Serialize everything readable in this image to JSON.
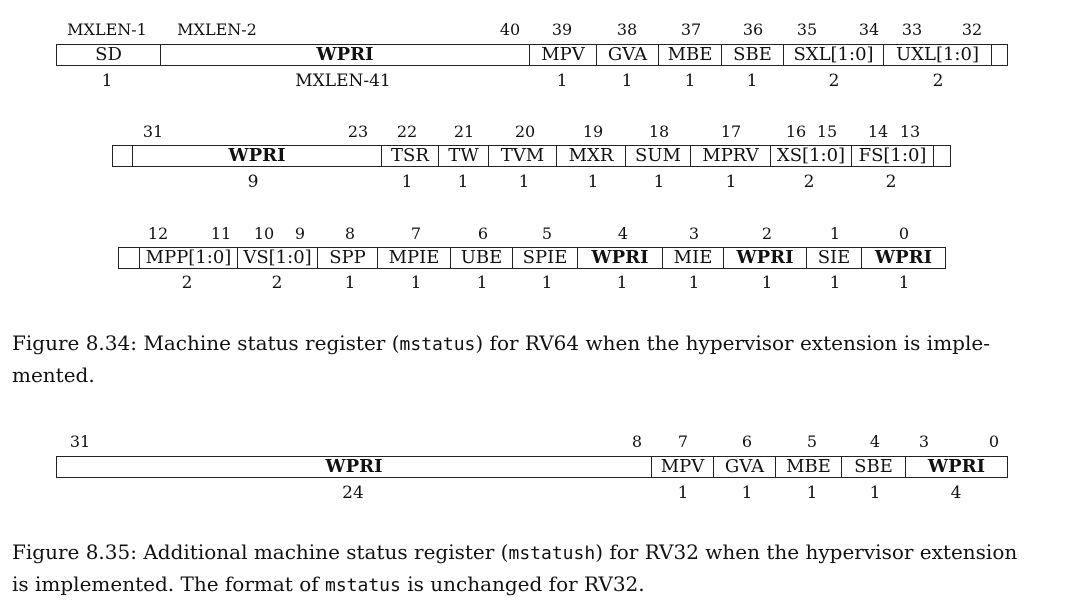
{
  "fig1": {
    "row1": {
      "bits": [
        "MXLEN-1",
        "MXLEN-2",
        "40",
        "39",
        "38",
        "37",
        "36",
        "35",
        "34",
        "33",
        "32"
      ],
      "fields": [
        "SD",
        "WPRI",
        "MPV",
        "GVA",
        "MBE",
        "SBE",
        "SXL[1:0]",
        "UXL[1:0]"
      ],
      "widths": [
        "1",
        "MXLEN-41",
        "1",
        "1",
        "1",
        "1",
        "2",
        "2"
      ]
    },
    "row2": {
      "bits": [
        "31",
        "23",
        "22",
        "21",
        "20",
        "19",
        "18",
        "17",
        "16",
        "15",
        "14",
        "13"
      ],
      "fields": [
        "WPRI",
        "TSR",
        "TW",
        "TVM",
        "MXR",
        "SUM",
        "MPRV",
        "XS[1:0]",
        "FS[1:0]"
      ],
      "widths": [
        "9",
        "1",
        "1",
        "1",
        "1",
        "1",
        "1",
        "2",
        "2"
      ]
    },
    "row3": {
      "bits": [
        "12",
        "11",
        "10",
        "9",
        "8",
        "7",
        "6",
        "5",
        "4",
        "3",
        "2",
        "1",
        "0"
      ],
      "fields": [
        "MPP[1:0]",
        "VS[1:0]",
        "SPP",
        "MPIE",
        "UBE",
        "SPIE",
        "WPRI",
        "MIE",
        "WPRI",
        "SIE",
        "WPRI"
      ],
      "widths": [
        "2",
        "2",
        "1",
        "1",
        "1",
        "1",
        "1",
        "1",
        "1",
        "1",
        "1"
      ]
    },
    "caption": {
      "prefix": "Figure 8.34: Machine status register (",
      "code": "mstatus",
      "suffix": ") for RV64 when the hypervisor extension is imple-",
      "line2": "mented."
    }
  },
  "fig2": {
    "bits": [
      "31",
      "8",
      "7",
      "6",
      "5",
      "4",
      "3",
      "0"
    ],
    "fields": [
      "WPRI",
      "MPV",
      "GVA",
      "MBE",
      "SBE",
      "WPRI"
    ],
    "widths": [
      "24",
      "1",
      "1",
      "1",
      "1",
      "4"
    ],
    "caption": {
      "prefix": "Figure 8.35: Additional machine status register (",
      "code": "mstatush",
      "suffix": ") for RV32 when the hypervisor extension",
      "line2_prefix": "is implemented. The format of ",
      "line2_code": "mstatus",
      "line2_suffix": " is unchanged for RV32."
    }
  }
}
